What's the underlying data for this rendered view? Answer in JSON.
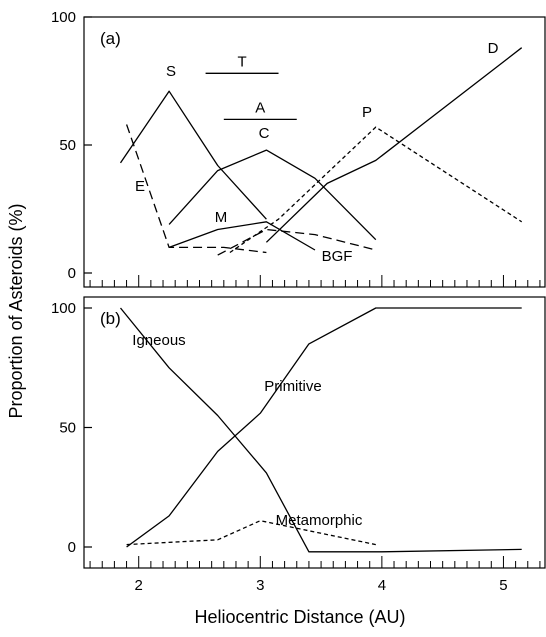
{
  "chart_data": {
    "type": "line",
    "xlabel": "Heliocentric Distance (AU)",
    "ylabel": "Proportion of Asteroids (%)",
    "x_ticks": [
      2,
      3,
      4,
      5
    ],
    "xlim": [
      1.55,
      5.35
    ],
    "panels": [
      {
        "panel_label": "(a)",
        "ylim": [
          0,
          100
        ],
        "y_ticks": [
          "0",
          "50",
          "100"
        ],
        "series": [
          {
            "name": "S",
            "style": "solid",
            "x": [
              1.85,
              2.25,
              2.65,
              3.05
            ],
            "y": [
              43,
              71,
              42,
              21
            ]
          },
          {
            "name": "C",
            "style": "solid",
            "x": [
              2.25,
              2.65,
              3.05,
              3.45,
              3.95
            ],
            "y": [
              19,
              40,
              48,
              37,
              13
            ]
          },
          {
            "name": "M",
            "style": "solid",
            "x": [
              2.25,
              2.65,
              3.05,
              3.45
            ],
            "y": [
              10,
              17,
              20,
              9
            ]
          },
          {
            "name": "D",
            "style": "solid",
            "x": [
              3.05,
              3.55,
              3.95,
              5.15
            ],
            "y": [
              12,
              35,
              44,
              88
            ]
          },
          {
            "name": "E",
            "style": "dashed",
            "x": [
              1.9,
              2.25,
              2.7,
              3.05
            ],
            "y": [
              58,
              10,
              10,
              8
            ]
          },
          {
            "name": "BGF",
            "style": "dashed",
            "x": [
              2.65,
              3.05,
              3.45,
              3.95
            ],
            "y": [
              7,
              17,
              15,
              9
            ]
          },
          {
            "name": "P",
            "style": "dotted",
            "x": [
              2.75,
              3.15,
              3.95,
              5.15
            ],
            "y": [
              8,
              21,
              57,
              20
            ]
          }
        ],
        "range_bars": [
          {
            "name": "T",
            "x": [
              2.55,
              3.15
            ],
            "y": 78
          },
          {
            "name": "A",
            "x": [
              2.7,
              3.3
            ],
            "y": 60
          }
        ]
      },
      {
        "panel_label": "(b)",
        "ylim": [
          0,
          100
        ],
        "y_ticks": [
          "0",
          "50",
          "100"
        ],
        "series": [
          {
            "name": "Igneous",
            "style": "solid",
            "x": [
              1.85,
              2.25,
              2.65,
              3.05,
              3.4,
              4.0,
              5.15
            ],
            "y": [
              100,
              75,
              55,
              31,
              -2,
              -2,
              -1
            ]
          },
          {
            "name": "Primitive",
            "style": "solid",
            "x": [
              1.9,
              2.25,
              2.65,
              3.0,
              3.4,
              3.95,
              5.15
            ],
            "y": [
              0,
              13,
              40,
              56,
              85,
              100,
              100
            ]
          },
          {
            "name": "Metamorphic",
            "style": "dotted",
            "x": [
              1.9,
              2.65,
              3.0,
              3.95
            ],
            "y": [
              1,
              3,
              11,
              1
            ]
          }
        ]
      }
    ]
  }
}
